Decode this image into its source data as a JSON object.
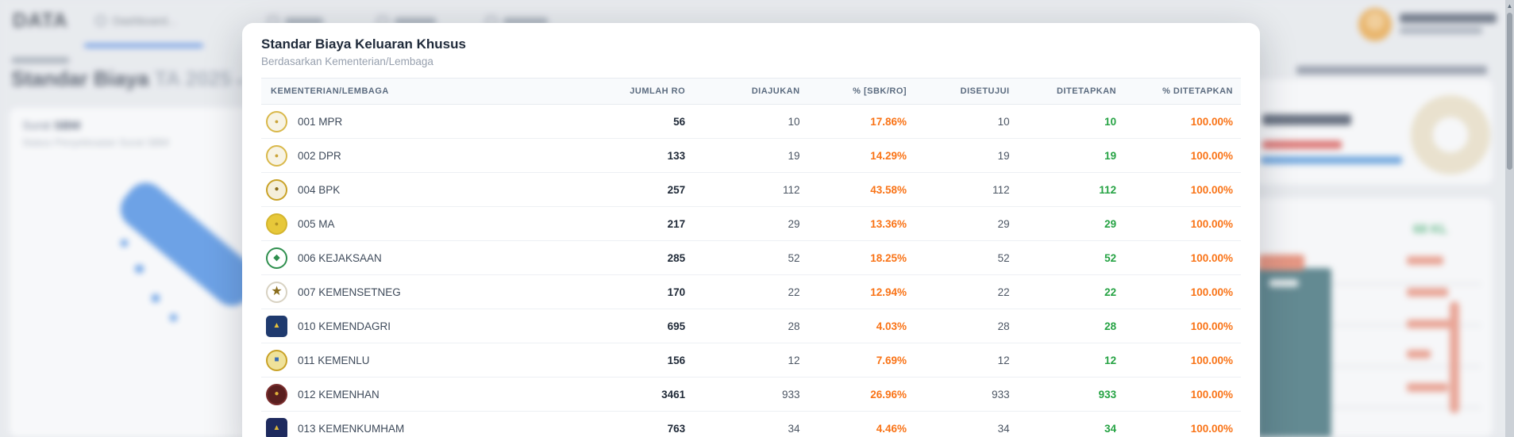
{
  "colors": {
    "accent_orange": "#f97316",
    "accent_green": "#26a344",
    "nav_active_blue": "#3f7de0",
    "map_blue": "#2e7ce0",
    "teal_bar": "#30646e",
    "salmon": "#e98a74",
    "badge_green": "#35a765"
  },
  "background": {
    "brand": "DATA",
    "nav_dashboard_label": "Dashboard...",
    "page_title": "Standar Biaya",
    "page_title_suffix": "TA 2025",
    "page_title_caret": "▾",
    "card_title_prefix": "Surat",
    "card_title_bold": "SBM",
    "card_subtitle": "Status Penyelesaian Surat SBM",
    "kl_badge": "68 KL"
  },
  "modal": {
    "title": "Standar Biaya Keluaran Khusus",
    "subtitle": "Berdasarkan Kementerian/Lembaga",
    "table": {
      "columns": [
        "KEMENTERIAN/LEMBAGA",
        "JUMLAH RO",
        "DIAJUKAN",
        "% [SBK/RO]",
        "DISETUJUI",
        "DITETAPKAN",
        "% DITETAPKAN"
      ],
      "rows": [
        {
          "name": "001 MPR",
          "jumlah_ro": "56",
          "diajukan": "10",
          "pct_sbk_ro": "17.86%",
          "disetujui": "10",
          "ditetapkan": "10",
          "pct_ditetapkan": "100.00%",
          "icon": {
            "shape": "circle",
            "bg": "#f7f3e4",
            "ring": "#d9b84a",
            "glyph": "●",
            "glyph_color": "#caa43a",
            "glyph_size": "9px"
          }
        },
        {
          "name": "002 DPR",
          "jumlah_ro": "133",
          "diajukan": "19",
          "pct_sbk_ro": "14.29%",
          "disetujui": "19",
          "ditetapkan": "19",
          "pct_ditetapkan": "100.00%",
          "icon": {
            "shape": "circle",
            "bg": "#f7f3e4",
            "ring": "#d9b84a",
            "glyph": "●",
            "glyph_color": "#caa43a",
            "glyph_size": "9px"
          }
        },
        {
          "name": "004 BPK",
          "jumlah_ro": "257",
          "diajukan": "112",
          "pct_sbk_ro": "43.58%",
          "disetujui": "112",
          "ditetapkan": "112",
          "pct_ditetapkan": "100.00%",
          "icon": {
            "shape": "circle",
            "bg": "#f5efda",
            "ring": "#c9a227",
            "glyph": "●",
            "glyph_color": "#8a6d1d",
            "glyph_size": "10px"
          }
        },
        {
          "name": "005 MA",
          "jumlah_ro": "217",
          "diajukan": "29",
          "pct_sbk_ro": "13.36%",
          "disetujui": "29",
          "ditetapkan": "29",
          "pct_ditetapkan": "100.00%",
          "icon": {
            "shape": "circle",
            "bg": "#e7c83a",
            "ring": "#d4b52e",
            "glyph": "●",
            "glyph_color": "#b39324",
            "glyph_size": "9px"
          }
        },
        {
          "name": "006 KEJAKSAAN",
          "jumlah_ro": "285",
          "diajukan": "52",
          "pct_sbk_ro": "18.25%",
          "disetujui": "52",
          "ditetapkan": "52",
          "pct_ditetapkan": "100.00%",
          "icon": {
            "shape": "circle",
            "bg": "#ffffff",
            "ring": "#2f8f4e",
            "glyph": "◆",
            "glyph_color": "#2f8f4e",
            "glyph_size": "11px"
          }
        },
        {
          "name": "007 KEMENSETNEG",
          "jumlah_ro": "170",
          "diajukan": "22",
          "pct_sbk_ro": "12.94%",
          "disetujui": "22",
          "ditetapkan": "22",
          "pct_ditetapkan": "100.00%",
          "icon": {
            "shape": "circle",
            "bg": "#ffffff",
            "ring": "#d8d2c2",
            "glyph": "★",
            "glyph_color": "#8a6d1d",
            "glyph_size": "16px"
          }
        },
        {
          "name": "010 KEMENDAGRI",
          "jumlah_ro": "695",
          "diajukan": "28",
          "pct_sbk_ro": "4.03%",
          "disetujui": "28",
          "ditetapkan": "28",
          "pct_ditetapkan": "100.00%",
          "icon": {
            "shape": "shield",
            "bg": "#1f3a6e",
            "ring": "#1f3a6e",
            "glyph": "▲",
            "glyph_color": "#e8c23a",
            "glyph_size": "10px"
          }
        },
        {
          "name": "011 KEMENLU",
          "jumlah_ro": "156",
          "diajukan": "12",
          "pct_sbk_ro": "7.69%",
          "disetujui": "12",
          "ditetapkan": "12",
          "pct_ditetapkan": "100.00%",
          "icon": {
            "shape": "circle",
            "bg": "#efe29a",
            "ring": "#c9a227",
            "glyph": "■",
            "glyph_color": "#3a6db5",
            "glyph_size": "10px"
          }
        },
        {
          "name": "012 KEMENHAN",
          "jumlah_ro": "3461",
          "diajukan": "933",
          "pct_sbk_ro": "26.96%",
          "disetujui": "933",
          "ditetapkan": "933",
          "pct_ditetapkan": "100.00%",
          "icon": {
            "shape": "circle",
            "bg": "#5a1f1f",
            "ring": "#7a2e2e",
            "glyph": "●",
            "glyph_color": "#e0b13a",
            "glyph_size": "10px"
          }
        },
        {
          "name": "013 KEMENKUMHAM",
          "jumlah_ro": "763",
          "diajukan": "34",
          "pct_sbk_ro": "4.46%",
          "disetujui": "34",
          "ditetapkan": "34",
          "pct_ditetapkan": "100.00%",
          "icon": {
            "shape": "shield",
            "bg": "#1e2a5e",
            "ring": "#1e2a5e",
            "glyph": "▲",
            "glyph_color": "#d9b43a",
            "glyph_size": "10px"
          }
        }
      ]
    }
  }
}
